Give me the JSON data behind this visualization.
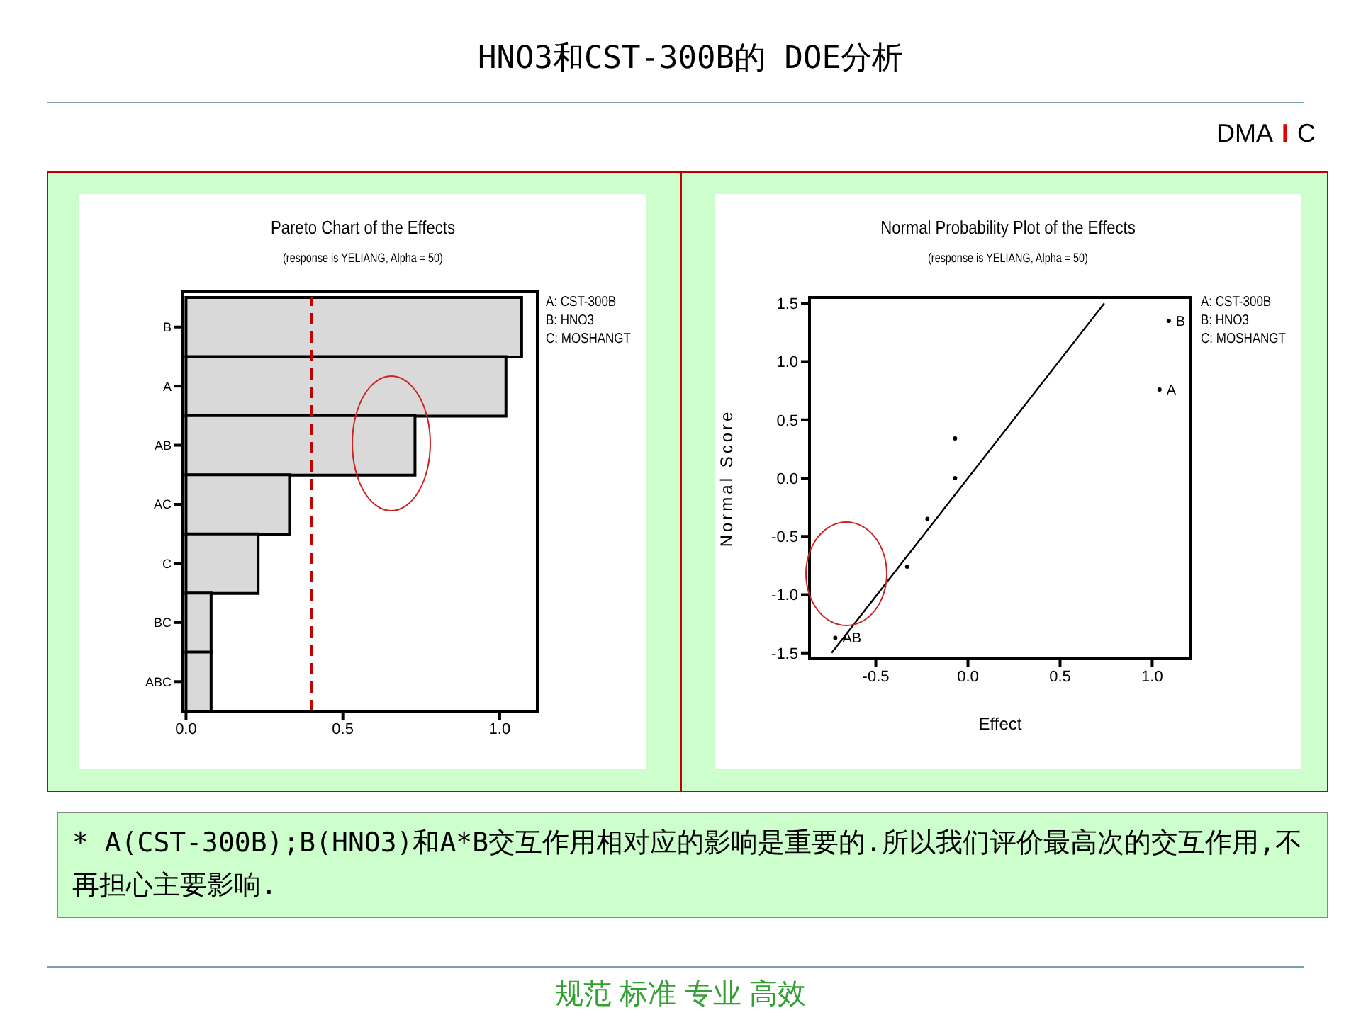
{
  "chart_data": [
    {
      "type": "bar",
      "orientation": "horizontal",
      "title": "Pareto Chart of the Effects",
      "subtitle": "(response is YELIANG, Alpha = 50)",
      "categories": [
        "B",
        "A",
        "AB",
        "AC",
        "C",
        "BC",
        "ABC"
      ],
      "values": [
        1.07,
        1.02,
        0.73,
        0.33,
        0.23,
        0.08,
        0.08
      ],
      "color": "#d9d9d9",
      "xlim": [
        -0.01,
        1.12
      ],
      "xticks": [
        {
          "value": 0,
          "label": "0.0"
        },
        {
          "value": 0.5,
          "label": "0.5"
        },
        {
          "value": 1,
          "label": "1.0"
        }
      ],
      "ref_lines": [
        {
          "axis": "x",
          "value": 0.4,
          "color": "#c00000",
          "line_style": "dashed"
        }
      ],
      "annotations": [
        "HNO3和CST-300B的 DOE分析",
        "DMA",
        "I",
        "C",
        "* A(CST-300B);B(HNO3)和A*B交互作用相对应的影响是重要的.所以我们评价最高次的交互作用,不再担心主要影响.",
        "规范 标准 专业 高效",
        "A: CST-300B",
        "B: HNO3",
        "C: MOSHANGT"
      ]
    },
    {
      "type": "scatter",
      "title": "Normal Probability Plot of the Effects",
      "subtitle": "(response is YELIANG, Alpha = 50)",
      "xlabel": "Effect",
      "ylabel": "Normal Score",
      "xlim": [
        -0.86,
        1.21
      ],
      "xticks": [
        {
          "value": -0.5,
          "label": "-0.5"
        },
        {
          "value": 0,
          "label": "0.0"
        },
        {
          "value": 0.5,
          "label": "0.5"
        },
        {
          "value": 1,
          "label": "1.0"
        }
      ],
      "ylim": [
        -1.55,
        1.55
      ],
      "yticks": [
        {
          "value": -1.5,
          "label": "-1.5"
        },
        {
          "value": -1,
          "label": "-1.0"
        },
        {
          "value": -0.5,
          "label": "-0.5"
        },
        {
          "value": 0,
          "label": "0.0"
        },
        {
          "value": 0.5,
          "label": "0.5"
        },
        {
          "value": 1,
          "label": "1.0"
        },
        {
          "value": 1.5,
          "label": "1.5"
        }
      ],
      "series": [
        {
          "type": "scatter",
          "color": "#000000",
          "marker": "circle",
          "x": [
            1.09,
            1.04,
            -0.07,
            -0.07,
            -0.22,
            -0.33,
            -0.72
          ],
          "values": [
            1.35,
            0.76,
            0.34,
            0,
            -0.35,
            -0.76,
            -1.37
          ]
        },
        {
          "type": "line",
          "color": "#000000",
          "x": [
            -0.74,
            0.74
          ],
          "values": [
            -1.5,
            1.5
          ]
        }
      ],
      "annotations": [
        "A: CST-300B",
        "B: HNO3",
        "C: MOSHANGT",
        {
          "text": "B",
          "x": 1.09,
          "y": 1.35
        },
        {
          "text": "A",
          "x": 1.04,
          "y": 0.76
        },
        {
          "text": "AB",
          "x": -0.72,
          "y": -1.37
        }
      ]
    }
  ]
}
